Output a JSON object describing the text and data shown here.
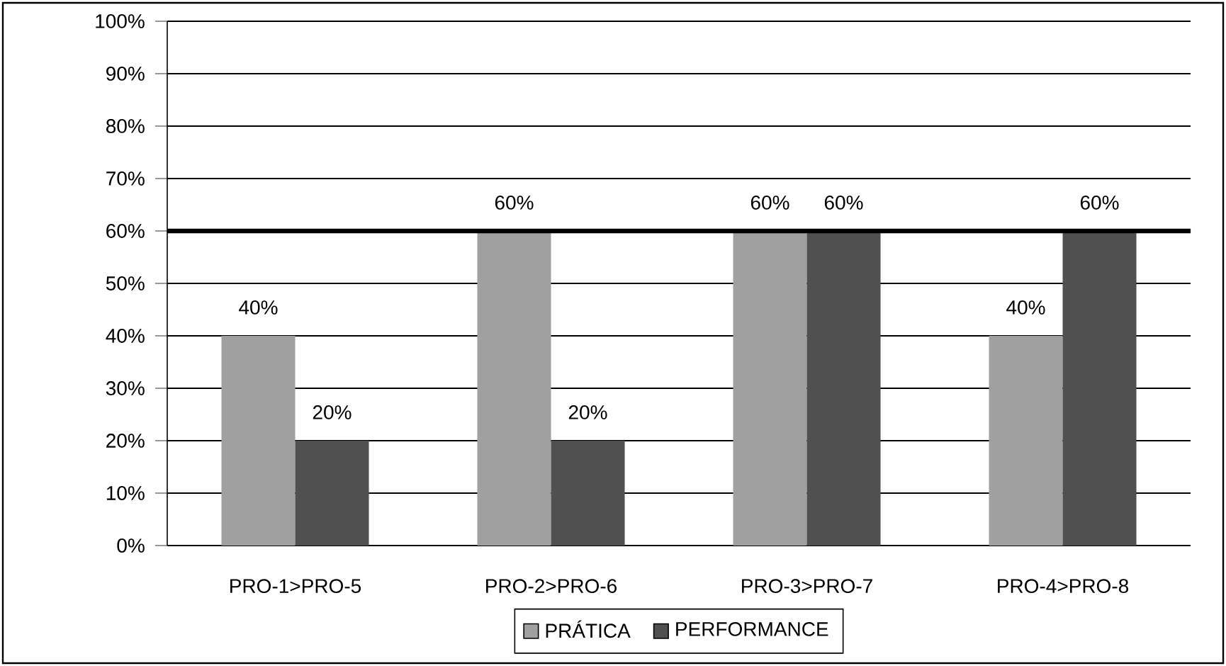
{
  "chart_data": {
    "type": "bar",
    "categories": [
      "PRO-1>PRO-5",
      "PRO-2>PRO-6",
      "PRO-3>PRO-7",
      "PRO-4>PRO-8"
    ],
    "series": [
      {
        "name": "PRÁTICA",
        "color": "#a0a0a0",
        "values": [
          40,
          60,
          60,
          40
        ],
        "value_labels": [
          "40%",
          "60%",
          "60%",
          "40%"
        ]
      },
      {
        "name": "PERFORMANCE",
        "color": "#505050",
        "values": [
          20,
          20,
          60,
          60
        ],
        "value_labels": [
          "20%",
          "20%",
          "60%",
          "60%"
        ]
      }
    ],
    "ylim": [
      0,
      100
    ],
    "yticks": [
      {
        "value": 0,
        "label": "0%"
      },
      {
        "value": 10,
        "label": "10%"
      },
      {
        "value": 20,
        "label": "20%"
      },
      {
        "value": 30,
        "label": "30%"
      },
      {
        "value": 40,
        "label": "40%"
      },
      {
        "value": 50,
        "label": "50%"
      },
      {
        "value": 60,
        "label": "60%"
      },
      {
        "value": 70,
        "label": "70%"
      },
      {
        "value": 80,
        "label": "80%"
      },
      {
        "value": 90,
        "label": "90%"
      },
      {
        "value": 100,
        "label": "100%"
      }
    ],
    "ref_lines": [
      {
        "axis": "y",
        "value": 60,
        "color": "#000000"
      }
    ],
    "grid": "y",
    "legend": "bottom"
  }
}
